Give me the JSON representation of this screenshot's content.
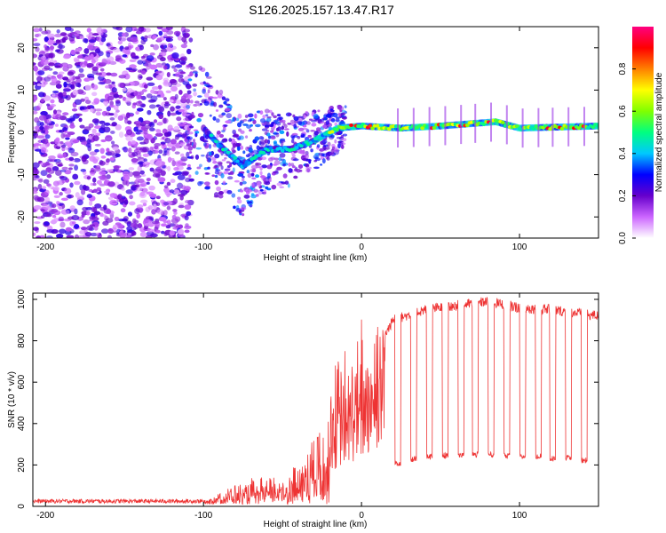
{
  "title": "S126.2025.157.13.47.R17",
  "chart_data": [
    {
      "type": "heatmap",
      "xlabel": "Height of straight line (km)",
      "ylabel": "Frequency (Hz)",
      "xlim": [
        -208,
        150
      ],
      "ylim": [
        -25,
        25
      ],
      "xticks": [
        -200,
        -100,
        0,
        100
      ],
      "yticks": [
        -20,
        -10,
        0,
        10,
        20
      ],
      "colorbar": {
        "label": "Normalized spectral amplitude",
        "range": [
          0.0,
          1.0
        ],
        "ticks": [
          0.0,
          0.2,
          0.4,
          0.6,
          0.8
        ],
        "colors": [
          "#ffffff",
          "#cc66ff",
          "#6600cc",
          "#0000ff",
          "#00c8ff",
          "#00ff80",
          "#80ff00",
          "#ffff00",
          "#ff8000",
          "#ff0000",
          "#ff0080"
        ]
      },
      "trace": [
        {
          "x": -105,
          "f": 3
        },
        {
          "x": -90,
          "f": -3
        },
        {
          "x": -75,
          "f": -8
        },
        {
          "x": -60,
          "f": -4
        },
        {
          "x": -45,
          "f": -4
        },
        {
          "x": -30,
          "f": -2
        },
        {
          "x": -15,
          "f": 1
        },
        {
          "x": 0,
          "f": 1.5
        },
        {
          "x": 25,
          "f": 1
        },
        {
          "x": 50,
          "f": 1.5
        },
        {
          "x": 85,
          "f": 2.5
        },
        {
          "x": 100,
          "f": 1
        },
        {
          "x": 150,
          "f": 1.5
        }
      ]
    },
    {
      "type": "line",
      "xlabel": "Height of straight line (km)",
      "ylabel": "SNR (10 * v/v)",
      "xlim": [
        -208,
        150
      ],
      "ylim": [
        0,
        1030
      ],
      "xticks": [
        -200,
        -100,
        0,
        100
      ],
      "yticks": [
        0,
        200,
        400,
        600,
        800,
        1000
      ],
      "series": [
        {
          "color": "#ee3333",
          "envelope": [
            {
              "x": -208,
              "y": 20
            },
            {
              "x": -100,
              "y": 25
            },
            {
              "x": -90,
              "y": 70
            },
            {
              "x": -70,
              "y": 110
            },
            {
              "x": -50,
              "y": 150
            },
            {
              "x": -40,
              "y": 200
            },
            {
              "x": -30,
              "y": 380
            },
            {
              "x": -20,
              "y": 480
            },
            {
              "x": -10,
              "y": 560
            },
            {
              "x": 0,
              "y": 640
            },
            {
              "x": 10,
              "y": 760
            },
            {
              "x": 20,
              "y": 900
            },
            {
              "x": 40,
              "y": 950
            },
            {
              "x": 60,
              "y": 970
            },
            {
              "x": 80,
              "y": 990
            },
            {
              "x": 100,
              "y": 960
            },
            {
              "x": 120,
              "y": 950
            },
            {
              "x": 150,
              "y": 920
            }
          ],
          "dips": [
            {
              "x": 23,
              "y": 210
            },
            {
              "x": 33,
              "y": 225
            },
            {
              "x": 43,
              "y": 240
            },
            {
              "x": 53,
              "y": 245
            },
            {
              "x": 63,
              "y": 250
            },
            {
              "x": 72,
              "y": 250
            },
            {
              "x": 82,
              "y": 250
            },
            {
              "x": 92,
              "y": 245
            },
            {
              "x": 102,
              "y": 240
            },
            {
              "x": 112,
              "y": 240
            },
            {
              "x": 121,
              "y": 230
            },
            {
              "x": 131,
              "y": 235
            },
            {
              "x": 141,
              "y": 220
            }
          ]
        }
      ]
    }
  ]
}
